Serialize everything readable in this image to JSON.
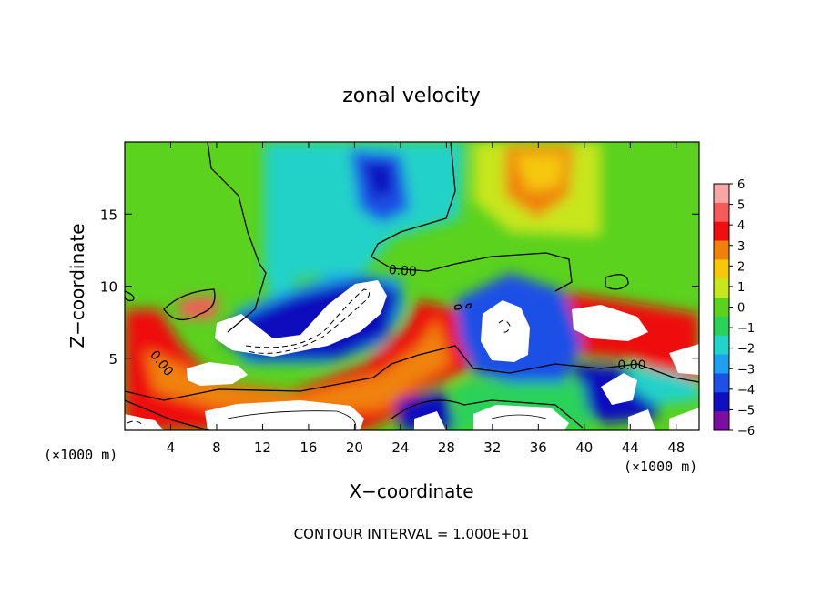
{
  "chart_data": {
    "type": "heatmap",
    "title": "zonal velocity",
    "xlabel": "X−coordinate",
    "ylabel": "Z−coordinate",
    "x_unit_label": "(×1000 m)",
    "x_unit_label_right": "(×1000 m)",
    "footer": "CONTOUR INTERVAL = 1.000E+01",
    "xlim": [
      0,
      50
    ],
    "ylim": [
      0,
      20
    ],
    "x_ticks": [
      "4",
      "8",
      "12",
      "16",
      "20",
      "24",
      "28",
      "32",
      "36",
      "40",
      "44",
      "48"
    ],
    "y_ticks": [
      "5",
      "10",
      "15"
    ],
    "contour_labels": [
      "0.00",
      "0.00",
      "0.00"
    ],
    "colorbar": {
      "ticks": [
        "6",
        "5",
        "4",
        "3",
        "2",
        "1",
        "0",
        "−1",
        "−2",
        "−3",
        "−4",
        "−5",
        "−6"
      ],
      "colors": [
        "#f7a6a6",
        "#f75a5a",
        "#ee0f0f",
        "#f0820a",
        "#f5c80a",
        "#c8e61e",
        "#5ad21e",
        "#2bd25a",
        "#23d2c8",
        "#1ea0f0",
        "#1e50e6",
        "#0f0fbe",
        "#7a0fa0"
      ]
    }
  }
}
